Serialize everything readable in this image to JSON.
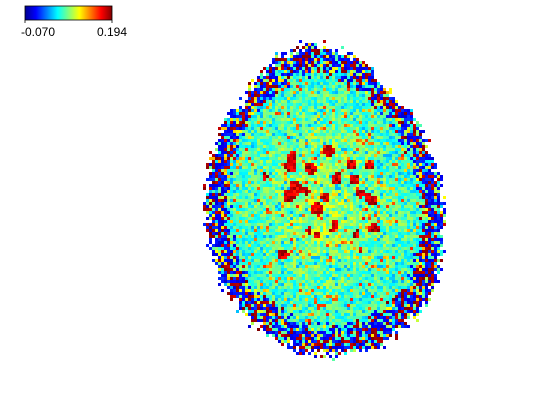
{
  "chart_data": {
    "type": "heatmap",
    "colorbar": {
      "lim": [
        -0.07,
        0.194
      ],
      "ticks": [
        {
          "value": -0.07,
          "label": "-0.070"
        },
        {
          "value": 0.194,
          "label": "0.194"
        }
      ]
    }
  }
}
